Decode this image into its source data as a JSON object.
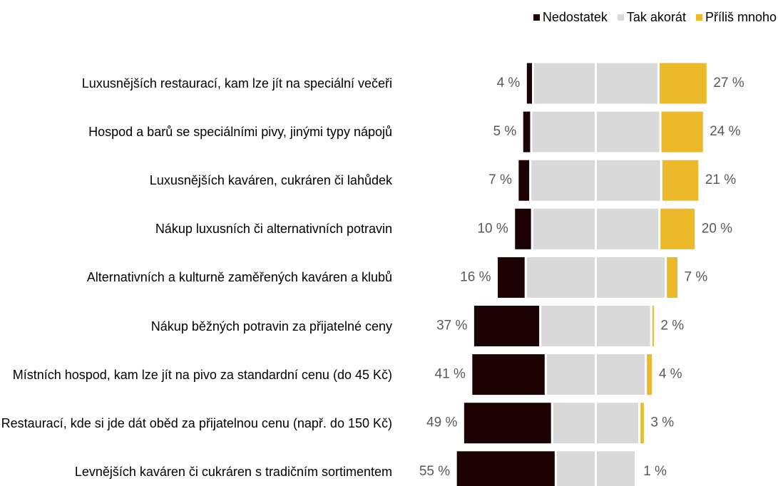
{
  "chart_data": {
    "type": "diverging_stacked_bar",
    "categories": [
      "Luxusnějších restaurací, kam lze jít na speciální večeři",
      "Hospod a barů se speciálními pivy, jinými typy nápojů",
      "Luxusnějších kaváren, cukráren či lahůdek",
      "Nákup luxusních či alternativních potravin",
      "Alternativních a kulturně zaměřených kaváren a klubů",
      "Nákup běžných potravin za přijatelné ceny",
      "Místních hospod, kam lze jít na pivo za standardní cenu (do 45 Kč)",
      "Restaurací, kde si jde dát oběd za přijatelnou cenu (např. do 150 Kč)",
      "Levnějších kaváren či cukráren s tradičním sortimentem"
    ],
    "series": [
      {
        "name": "Nedostatek",
        "color": "#1c0202",
        "values": [
          4,
          5,
          7,
          10,
          16,
          37,
          41,
          49,
          55
        ],
        "value_labels": [
          "4 %",
          "5 %",
          "7 %",
          "10 %",
          "16 %",
          "37 %",
          "41 %",
          "49 %",
          "55 %"
        ]
      },
      {
        "name": "Tak akorát",
        "color": "#d9d9d9",
        "values": [
          69,
          71,
          72,
          70,
          77,
          61,
          55,
          48,
          44
        ]
      },
      {
        "name": "Příliš mnoho",
        "color": "#ebb92a",
        "values": [
          27,
          24,
          21,
          20,
          7,
          2,
          4,
          3,
          1
        ],
        "value_labels": [
          "27 %",
          "24 %",
          "21 %",
          "20 %",
          "7 %",
          "2 %",
          "4 %",
          "3 %",
          "1 %"
        ]
      }
    ],
    "legend": "top-right"
  }
}
